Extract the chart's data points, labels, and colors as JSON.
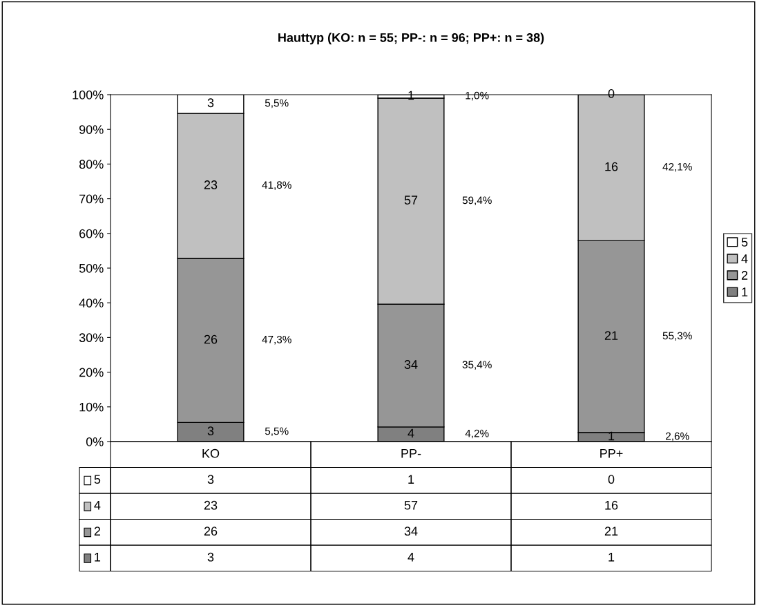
{
  "chart_data": {
    "type": "bar",
    "stacked": true,
    "title": "Hauttyp (KO: n = 55; PP-: n = 96; PP+: n = 38)",
    "categories": [
      "KO",
      "PP-",
      "PP+"
    ],
    "series": [
      {
        "name": "1",
        "color": "#808080",
        "values": [
          5.5,
          4.2,
          2.6
        ]
      },
      {
        "name": "2",
        "color": "#969696",
        "values": [
          47.3,
          35.4,
          55.3
        ]
      },
      {
        "name": "4",
        "color": "#c0c0c0",
        "values": [
          41.8,
          59.4,
          42.1
        ]
      },
      {
        "name": "5",
        "color": "#ffffff",
        "values": [
          5.5,
          1.0,
          0.0
        ]
      }
    ],
    "ylim": [
      0,
      100
    ],
    "yticks": [
      {
        "value": 0,
        "label": "0%"
      },
      {
        "value": 10,
        "label": "10%"
      },
      {
        "value": 20,
        "label": "20%"
      },
      {
        "value": 30,
        "label": "30%"
      },
      {
        "value": 40,
        "label": "40%"
      },
      {
        "value": 50,
        "label": "50%"
      },
      {
        "value": 60,
        "label": "60%"
      },
      {
        "value": 70,
        "label": "70%"
      },
      {
        "value": 80,
        "label": "80%"
      },
      {
        "value": 90,
        "label": "90%"
      },
      {
        "value": 100,
        "label": "100%"
      }
    ],
    "annotations": [
      "3",
      "4",
      "1",
      "26",
      "34",
      "21",
      "23",
      "57",
      "16",
      "3",
      "1",
      "0",
      "5,5%",
      "4,2%",
      "2,6%",
      "47,3%",
      "35,4%",
      "55,3%",
      "41,8%",
      "59,4%",
      "42,1%",
      "5,5%",
      "1,0%"
    ],
    "grid": false,
    "legend": "right"
  }
}
